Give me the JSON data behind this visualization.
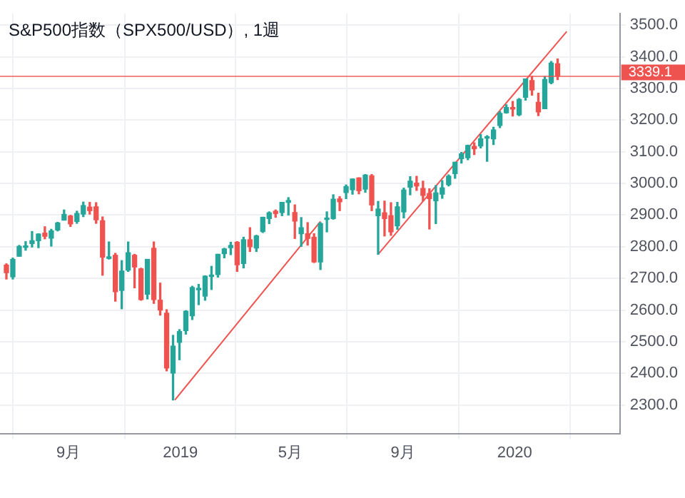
{
  "chart_data": {
    "type": "candlestick",
    "title": "S&P500指数（SPX500/USD）, 1週",
    "x": [
      "2018-06-25",
      "2018-07-02",
      "2018-07-09",
      "2018-07-16",
      "2018-07-23",
      "2018-07-30",
      "2018-08-06",
      "2018-08-13",
      "2018-08-20",
      "2018-08-27",
      "2018-09-03",
      "2018-09-10",
      "2018-09-17",
      "2018-09-24",
      "2018-10-01",
      "2018-10-08",
      "2018-10-15",
      "2018-10-22",
      "2018-10-29",
      "2018-11-05",
      "2018-11-12",
      "2018-11-19",
      "2018-11-26",
      "2018-12-03",
      "2018-12-10",
      "2018-12-17",
      "2018-12-24",
      "2018-12-31",
      "2019-01-07",
      "2019-01-14",
      "2019-01-21",
      "2019-01-28",
      "2019-02-04",
      "2019-02-11",
      "2019-02-18",
      "2019-02-25",
      "2019-03-04",
      "2019-03-11",
      "2019-03-18",
      "2019-03-25",
      "2019-04-01",
      "2019-04-08",
      "2019-04-15",
      "2019-04-22",
      "2019-04-29",
      "2019-05-06",
      "2019-05-13",
      "2019-05-20",
      "2019-05-27",
      "2019-06-03",
      "2019-06-10",
      "2019-06-17",
      "2019-06-24",
      "2019-07-01",
      "2019-07-08",
      "2019-07-15",
      "2019-07-22",
      "2019-07-29",
      "2019-08-05",
      "2019-08-12",
      "2019-08-19",
      "2019-08-26",
      "2019-09-02",
      "2019-09-09",
      "2019-09-16",
      "2019-09-23",
      "2019-09-30",
      "2019-10-07",
      "2019-10-14",
      "2019-10-21",
      "2019-10-28",
      "2019-11-04",
      "2019-11-11",
      "2019-11-18",
      "2019-11-25",
      "2019-12-02",
      "2019-12-09",
      "2019-12-16",
      "2019-12-23",
      "2019-12-30",
      "2020-01-06",
      "2020-01-13",
      "2020-01-20",
      "2020-01-27",
      "2020-02-03",
      "2020-02-10",
      "2020-02-17"
    ],
    "ohlc": [
      [
        2742,
        2746,
        2698,
        2718
      ],
      [
        2705,
        2764,
        2698,
        2760
      ],
      [
        2770,
        2804,
        2770,
        2801
      ],
      [
        2798,
        2816,
        2789,
        2802
      ],
      [
        2810,
        2848,
        2799,
        2819
      ],
      [
        2819,
        2841,
        2797,
        2840
      ],
      [
        2843,
        2863,
        2825,
        2833
      ],
      [
        2827,
        2855,
        2802,
        2850
      ],
      [
        2853,
        2877,
        2850,
        2875
      ],
      [
        2884,
        2916,
        2884,
        2902
      ],
      [
        2897,
        2899,
        2864,
        2872
      ],
      [
        2880,
        2912,
        2874,
        2905
      ],
      [
        2903,
        2941,
        2895,
        2930
      ],
      [
        2925,
        2940,
        2903,
        2914
      ],
      [
        2926,
        2939,
        2874,
        2885
      ],
      [
        2882,
        2894,
        2710,
        2767
      ],
      [
        2763,
        2815,
        2761,
        2768
      ],
      [
        2773,
        2779,
        2628,
        2658
      ],
      [
        2662,
        2756,
        2604,
        2723
      ],
      [
        2726,
        2815,
        2722,
        2781
      ],
      [
        2773,
        2776,
        2670,
        2736
      ],
      [
        2730,
        2732,
        2631,
        2633
      ],
      [
        2650,
        2760,
        2635,
        2760
      ],
      [
        2795,
        2815,
        2621,
        2633
      ],
      [
        2631,
        2685,
        2584,
        2600
      ],
      [
        2590,
        2601,
        2408,
        2417
      ],
      [
        2401,
        2520,
        2316,
        2486
      ],
      [
        2498,
        2538,
        2443,
        2532
      ],
      [
        2535,
        2598,
        2524,
        2596
      ],
      [
        2582,
        2675,
        2570,
        2671
      ],
      [
        2664,
        2681,
        2617,
        2665
      ],
      [
        2644,
        2708,
        2631,
        2707
      ],
      [
        2706,
        2738,
        2665,
        2708
      ],
      [
        2712,
        2776,
        2704,
        2776
      ],
      [
        2778,
        2795,
        2765,
        2793
      ],
      [
        2797,
        2814,
        2775,
        2804
      ],
      [
        2814,
        2816,
        2722,
        2743
      ],
      [
        2747,
        2830,
        2733,
        2822
      ],
      [
        2822,
        2860,
        2785,
        2800
      ],
      [
        2796,
        2836,
        2785,
        2834
      ],
      [
        2848,
        2893,
        2845,
        2893
      ],
      [
        2889,
        2910,
        2873,
        2907
      ],
      [
        2912,
        2916,
        2893,
        2905
      ],
      [
        2908,
        2940,
        2898,
        2940
      ],
      [
        2940,
        2955,
        2900,
        2946
      ],
      [
        2908,
        2932,
        2826,
        2881
      ],
      [
        2841,
        2892,
        2801,
        2860
      ],
      [
        2841,
        2876,
        2805,
        2826
      ],
      [
        2830,
        2841,
        2750,
        2752
      ],
      [
        2752,
        2876,
        2728,
        2873
      ],
      [
        2886,
        2910,
        2847,
        2887
      ],
      [
        2889,
        2964,
        2887,
        2950
      ],
      [
        2951,
        2958,
        2914,
        2942
      ],
      [
        2971,
        2995,
        2952,
        2990
      ],
      [
        2980,
        3014,
        2966,
        3014
      ],
      [
        3017,
        3018,
        2967,
        2977
      ],
      [
        2982,
        3028,
        2972,
        3026
      ],
      [
        3024,
        3028,
        2914,
        2932
      ],
      [
        2898,
        2943,
        2776,
        2919
      ],
      [
        2907,
        2944,
        2834,
        2889
      ],
      [
        2898,
        2939,
        2836,
        2847
      ],
      [
        2866,
        2940,
        2855,
        2926
      ],
      [
        2910,
        2985,
        2891,
        2979
      ],
      [
        2988,
        3021,
        2964,
        3007
      ],
      [
        3001,
        3022,
        2978,
        2992
      ],
      [
        2984,
        3007,
        2945,
        2962
      ],
      [
        2968,
        2983,
        2856,
        2952
      ],
      [
        2945,
        2993,
        2873,
        2970
      ],
      [
        2966,
        3009,
        2953,
        2986
      ],
      [
        2996,
        3027,
        2992,
        3023
      ],
      [
        3031,
        3067,
        3016,
        3067
      ],
      [
        3078,
        3098,
        3064,
        3093
      ],
      [
        3081,
        3121,
        3075,
        3120
      ],
      [
        3117,
        3128,
        3091,
        3110
      ],
      [
        3118,
        3154,
        3112,
        3141
      ],
      [
        3143,
        3151,
        3070,
        3146
      ],
      [
        3141,
        3177,
        3123,
        3169
      ],
      [
        3183,
        3227,
        3176,
        3221
      ],
      [
        3223,
        3248,
        3222,
        3240
      ],
      [
        3240,
        3259,
        3213,
        3235
      ],
      [
        3217,
        3268,
        3214,
        3265
      ],
      [
        3272,
        3330,
        3263,
        3330
      ],
      [
        3325,
        3338,
        3279,
        3295
      ],
      [
        3256,
        3285,
        3214,
        3226
      ],
      [
        3236,
        3337,
        3236,
        3328
      ],
      [
        3318,
        3385,
        3315,
        3380
      ],
      [
        3378,
        3393,
        3328,
        3339.1
      ]
    ],
    "colors": [
      "#ef5350",
      "#26a69a",
      "#26a69a",
      "#26a69a",
      "#26a69a",
      "#26a69a",
      "#ef5350",
      "#26a69a",
      "#26a69a",
      "#26a69a",
      "#ef5350",
      "#26a69a",
      "#26a69a",
      "#ef5350",
      "#ef5350",
      "#ef5350",
      "#26a69a",
      "#ef5350",
      "#26a69a",
      "#26a69a",
      "#ef5350",
      "#ef5350",
      "#26a69a",
      "#ef5350",
      "#ef5350",
      "#ef5350",
      "#26a69a",
      "#26a69a",
      "#26a69a",
      "#26a69a",
      "#26a69a",
      "#26a69a",
      "#26a69a",
      "#26a69a",
      "#26a69a",
      "#26a69a",
      "#ef5350",
      "#26a69a",
      "#ef5350",
      "#26a69a",
      "#26a69a",
      "#26a69a",
      "#ef5350",
      "#26a69a",
      "#26a69a",
      "#ef5350",
      "#26a69a",
      "#ef5350",
      "#ef5350",
      "#26a69a",
      "#26a69a",
      "#26a69a",
      "#ef5350",
      "#26a69a",
      "#26a69a",
      "#ef5350",
      "#26a69a",
      "#ef5350",
      "#26a69a",
      "#ef5350",
      "#ef5350",
      "#26a69a",
      "#26a69a",
      "#26a69a",
      "#ef5350",
      "#ef5350",
      "#ef5350",
      "#26a69a",
      "#26a69a",
      "#26a69a",
      "#26a69a",
      "#26a69a",
      "#26a69a",
      "#ef5350",
      "#26a69a",
      "#26a69a",
      "#26a69a",
      "#26a69a",
      "#26a69a",
      "#ef5350",
      "#26a69a",
      "#26a69a",
      "#ef5350",
      "#ef5350",
      "#26a69a",
      "#26a69a",
      "#ef5350"
    ],
    "series": [
      {
        "type": "line",
        "x": [
          "2018-12-26",
          "2019-06-03"
        ],
        "values": [
          2316,
          2880
        ],
        "color": "#ef5350"
      },
      {
        "type": "line",
        "x": [
          "2019-08-05",
          "2020-02-27"
        ],
        "values": [
          2776,
          3480
        ],
        "color": "#ef5350"
      }
    ],
    "ref_lines": [
      {
        "axis": "y",
        "value": 3339.1,
        "label": "3339.1",
        "color": "#ef5350"
      }
    ],
    "xlim": [
      "2018-06-18",
      "2020-04-25"
    ],
    "xticks": [
      {
        "value": "2018-09-01",
        "label": "9月"
      },
      {
        "value": "2019-01-01",
        "label": "2019"
      },
      {
        "value": "2019-05-01",
        "label": "5月"
      },
      {
        "value": "2019-09-01",
        "label": "9月"
      },
      {
        "value": "2020-01-01",
        "label": "2020"
      }
    ],
    "ylim": [
      2210,
      3536
    ],
    "yticks": [
      {
        "value": 2300,
        "label": "2300.0"
      },
      {
        "value": 2400,
        "label": "2400.0"
      },
      {
        "value": 2500,
        "label": "2500.0"
      },
      {
        "value": 2600,
        "label": "2600.0"
      },
      {
        "value": 2700,
        "label": "2700.0"
      },
      {
        "value": 2800,
        "label": "2800.0"
      },
      {
        "value": 2900,
        "label": "2900.0"
      },
      {
        "value": 3000,
        "label": "3000.0"
      },
      {
        "value": 3100,
        "label": "3100.0"
      },
      {
        "value": 3200,
        "label": "3200.0"
      },
      {
        "value": 3300,
        "label": "3300.0"
      },
      {
        "value": 3400,
        "label": "3400.0"
      },
      {
        "value": 3500,
        "label": "3500.0"
      }
    ],
    "grid": true
  }
}
